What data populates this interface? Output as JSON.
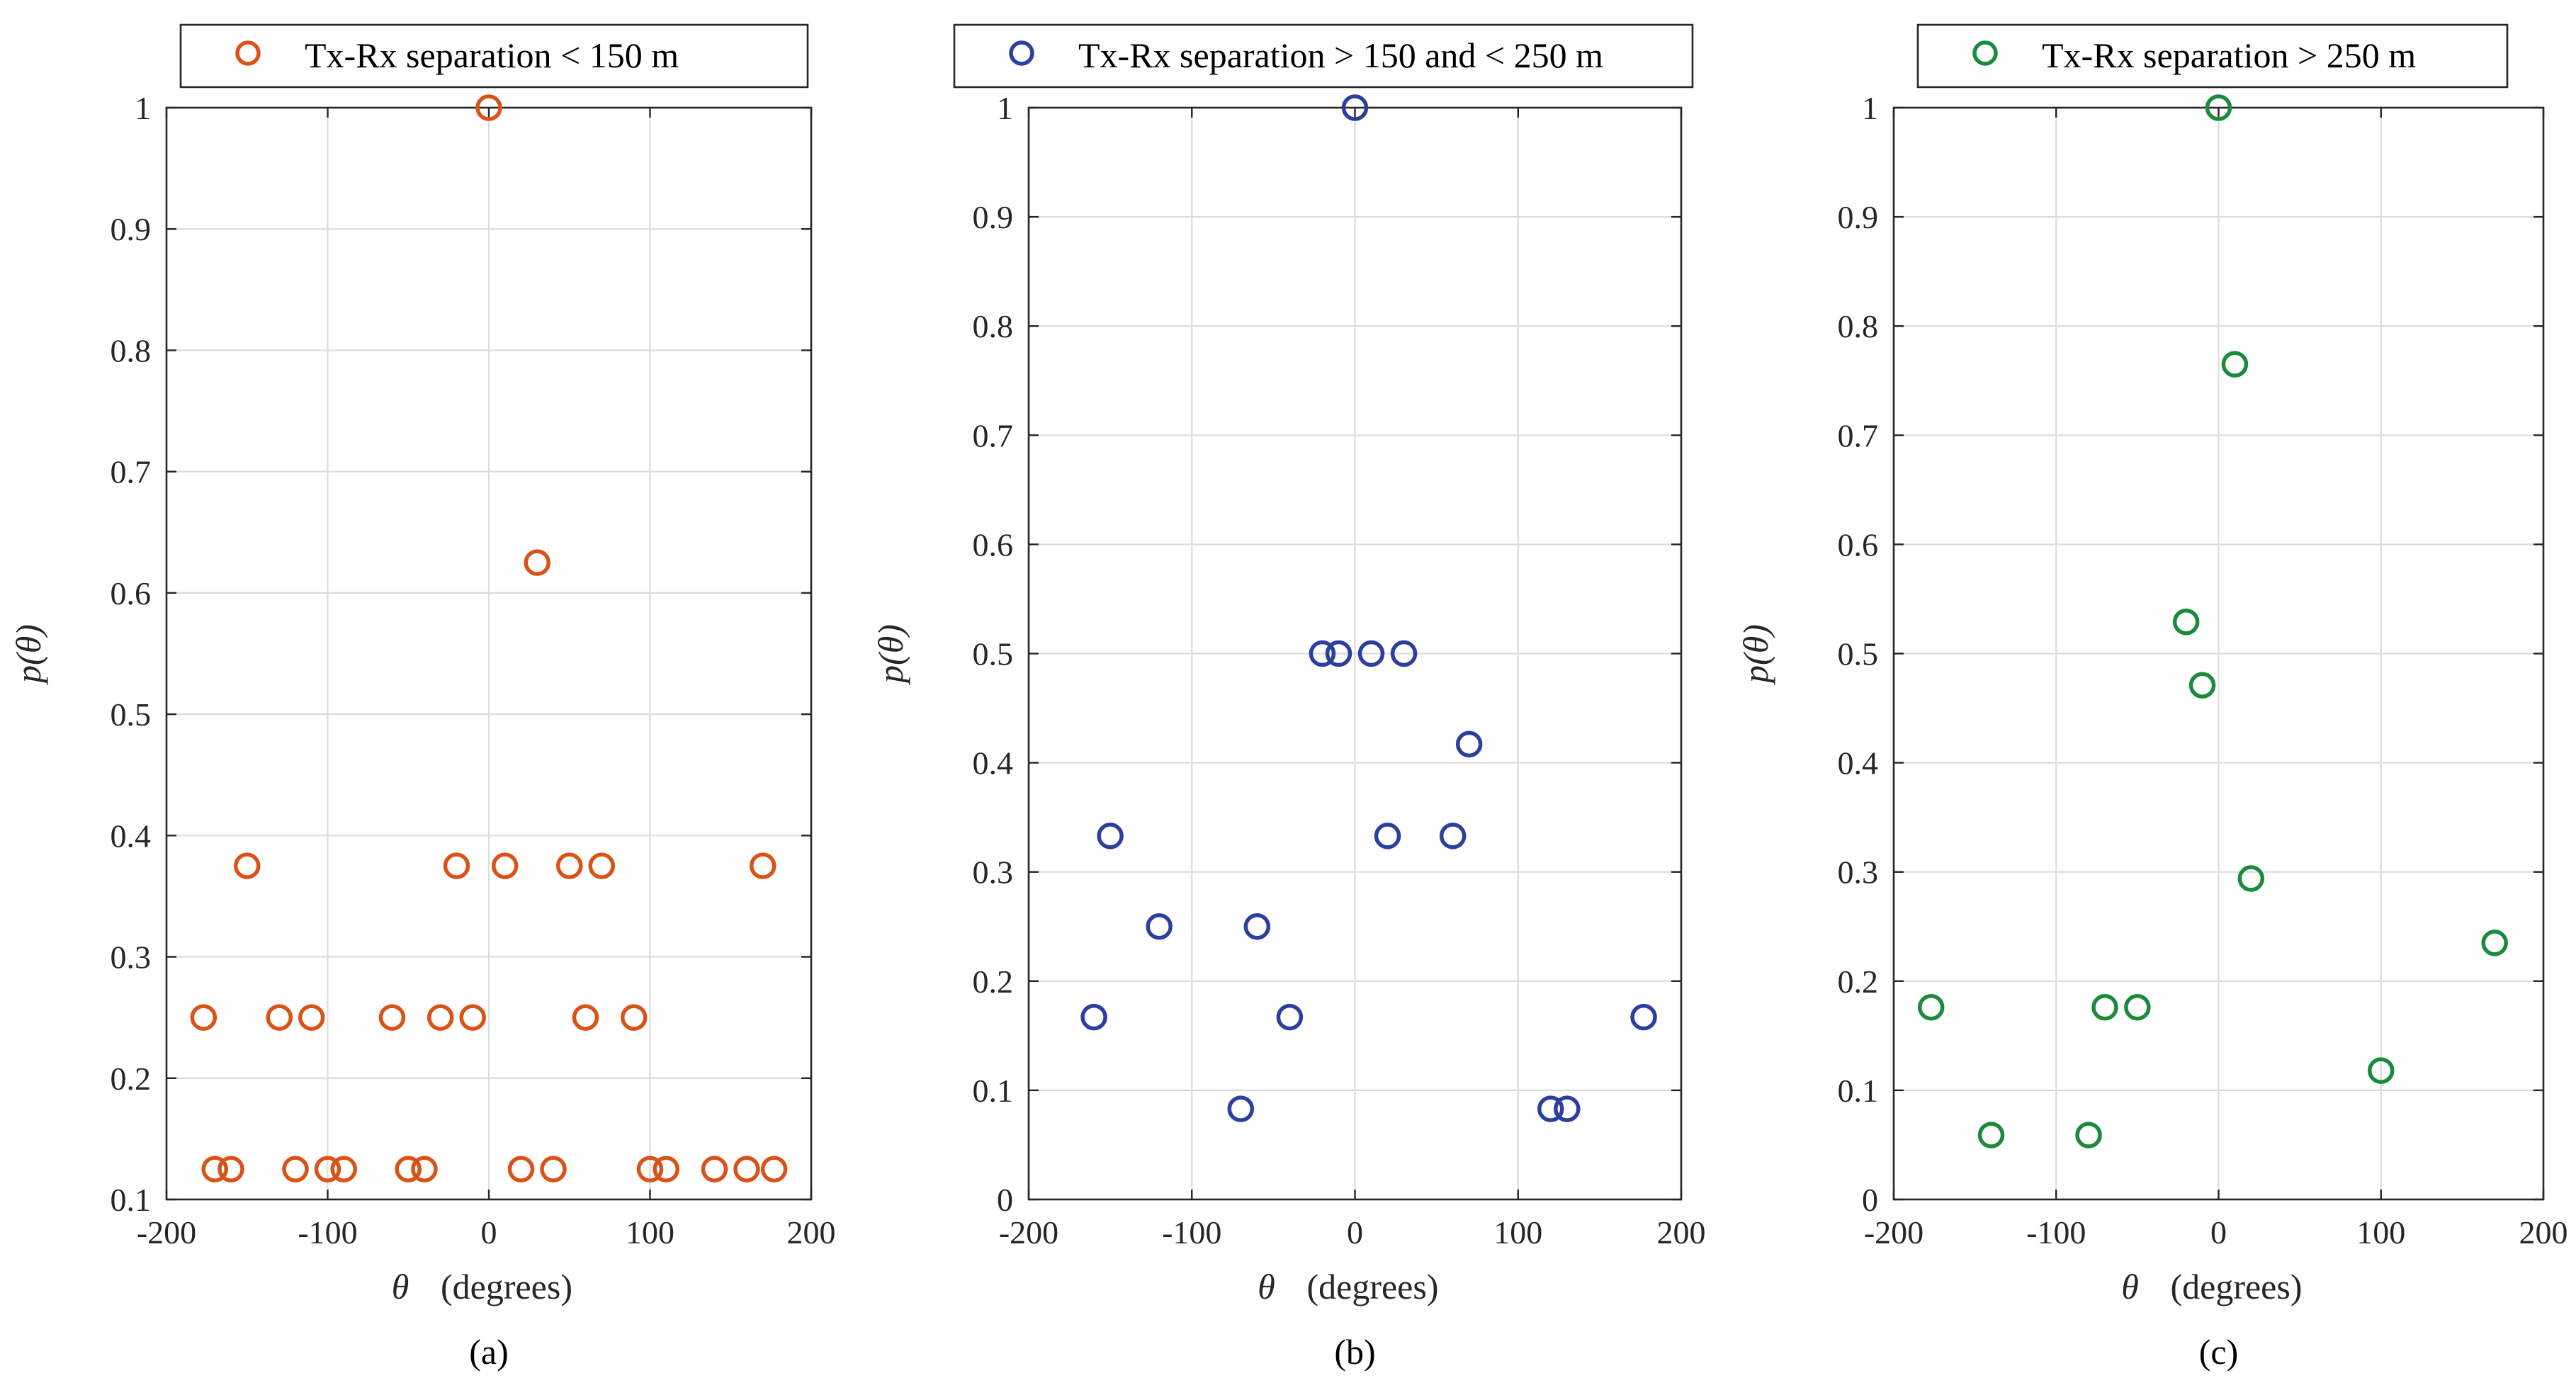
{
  "figure": {
    "panels": [
      {
        "caption": "(a)",
        "legend": "Tx-Rx separation < 150 m",
        "ylabel_text": "p(θ)",
        "xlabel_symbol": "θ",
        "xlabel_units": "(degrees)"
      },
      {
        "caption": "(b)",
        "legend": "Tx-Rx separation > 150 and < 250 m",
        "ylabel_text": "p(θ)",
        "xlabel_symbol": "θ",
        "xlabel_units": "(degrees)"
      },
      {
        "caption": "(c)",
        "legend": "Tx-Rx separation > 250 m",
        "ylabel_text": "p(θ)",
        "xlabel_symbol": "θ",
        "xlabel_units": "(degrees)"
      }
    ]
  },
  "chart_data": [
    {
      "type": "scatter",
      "title": "",
      "legend": "Tx-Rx separation < 150 m",
      "color": "#D95319",
      "xlabel": "θ (degrees)",
      "ylabel": "p(θ)",
      "xlim": [
        -200,
        200
      ],
      "ylim": [
        0.1,
        1
      ],
      "xticks": [
        -200,
        -100,
        0,
        100,
        200
      ],
      "xtick_labels": [
        "-200",
        "-100",
        "0",
        "100",
        "200"
      ],
      "yticks": [
        0.1,
        0.2,
        0.3,
        0.4,
        0.5,
        0.6,
        0.7,
        0.8,
        0.9,
        1
      ],
      "ytick_labels": [
        "0.1",
        "0.2",
        "0.3",
        "0.4",
        "0.5",
        "0.6",
        "0.7",
        "0.8",
        "0.9",
        "1"
      ],
      "grid": true,
      "points": [
        {
          "x": 0,
          "y": 1.0
        },
        {
          "x": 30,
          "y": 0.625
        },
        {
          "x": -150,
          "y": 0.375
        },
        {
          "x": -20,
          "y": 0.375
        },
        {
          "x": 10,
          "y": 0.375
        },
        {
          "x": 50,
          "y": 0.375
        },
        {
          "x": 70,
          "y": 0.375
        },
        {
          "x": 170,
          "y": 0.375
        },
        {
          "x": -177,
          "y": 0.25
        },
        {
          "x": -130,
          "y": 0.25
        },
        {
          "x": -110,
          "y": 0.25
        },
        {
          "x": -60,
          "y": 0.25
        },
        {
          "x": -30,
          "y": 0.25
        },
        {
          "x": -10,
          "y": 0.25
        },
        {
          "x": 60,
          "y": 0.25
        },
        {
          "x": 90,
          "y": 0.25
        },
        {
          "x": -170,
          "y": 0.125
        },
        {
          "x": -160,
          "y": 0.125
        },
        {
          "x": -120,
          "y": 0.125
        },
        {
          "x": -100,
          "y": 0.125
        },
        {
          "x": -90,
          "y": 0.125
        },
        {
          "x": -50,
          "y": 0.125
        },
        {
          "x": -40,
          "y": 0.125
        },
        {
          "x": 20,
          "y": 0.125
        },
        {
          "x": 40,
          "y": 0.125
        },
        {
          "x": 100,
          "y": 0.125
        },
        {
          "x": 110,
          "y": 0.125
        },
        {
          "x": 140,
          "y": 0.125
        },
        {
          "x": 160,
          "y": 0.125
        },
        {
          "x": 177,
          "y": 0.125
        }
      ]
    },
    {
      "type": "scatter",
      "title": "",
      "legend": "Tx-Rx separation > 150 and < 250 m",
      "color": "#2B3F9E",
      "xlabel": "θ (degrees)",
      "ylabel": "p(θ)",
      "xlim": [
        -200,
        200
      ],
      "ylim": [
        0,
        1
      ],
      "xticks": [
        -200,
        -100,
        0,
        100,
        200
      ],
      "xtick_labels": [
        "-200",
        "-100",
        "0",
        "100",
        "200"
      ],
      "yticks": [
        0,
        0.1,
        0.2,
        0.3,
        0.4,
        0.5,
        0.6,
        0.7,
        0.8,
        0.9,
        1
      ],
      "ytick_labels": [
        "0",
        "0.1",
        "0.2",
        "0.3",
        "0.4",
        "0.5",
        "0.6",
        "0.7",
        "0.8",
        "0.9",
        "1"
      ],
      "grid": true,
      "points": [
        {
          "x": 0,
          "y": 1.0
        },
        {
          "x": -20,
          "y": 0.5
        },
        {
          "x": -10,
          "y": 0.5
        },
        {
          "x": 10,
          "y": 0.5
        },
        {
          "x": 30,
          "y": 0.5
        },
        {
          "x": 70,
          "y": 0.417
        },
        {
          "x": -150,
          "y": 0.333
        },
        {
          "x": 20,
          "y": 0.333
        },
        {
          "x": 60,
          "y": 0.333
        },
        {
          "x": -120,
          "y": 0.25
        },
        {
          "x": -60,
          "y": 0.25
        },
        {
          "x": -160,
          "y": 0.167
        },
        {
          "x": -40,
          "y": 0.167
        },
        {
          "x": 177,
          "y": 0.167
        },
        {
          "x": -70,
          "y": 0.083
        },
        {
          "x": 120,
          "y": 0.083
        },
        {
          "x": 130,
          "y": 0.083
        }
      ]
    },
    {
      "type": "scatter",
      "title": "",
      "legend": "Tx-Rx separation > 250 m",
      "color": "#1A8A3C",
      "xlabel": "θ (degrees)",
      "ylabel": "p(θ)",
      "xlim": [
        -200,
        200
      ],
      "ylim": [
        0,
        1
      ],
      "xticks": [
        -200,
        -100,
        0,
        100,
        200
      ],
      "xtick_labels": [
        "-200",
        "-100",
        "0",
        "100",
        "200"
      ],
      "yticks": [
        0,
        0.1,
        0.2,
        0.3,
        0.4,
        0.5,
        0.6,
        0.7,
        0.8,
        0.9,
        1
      ],
      "ytick_labels": [
        "0",
        "0.1",
        "0.2",
        "0.3",
        "0.4",
        "0.5",
        "0.6",
        "0.7",
        "0.8",
        "0.9",
        "1"
      ],
      "grid": true,
      "points": [
        {
          "x": 0,
          "y": 1.0
        },
        {
          "x": 10,
          "y": 0.765
        },
        {
          "x": -20,
          "y": 0.529
        },
        {
          "x": -10,
          "y": 0.471
        },
        {
          "x": 20,
          "y": 0.294
        },
        {
          "x": 170,
          "y": 0.235
        },
        {
          "x": -177,
          "y": 0.176
        },
        {
          "x": -70,
          "y": 0.176
        },
        {
          "x": -50,
          "y": 0.176
        },
        {
          "x": 100,
          "y": 0.118
        },
        {
          "x": -140,
          "y": 0.059
        },
        {
          "x": -80,
          "y": 0.059
        }
      ]
    }
  ]
}
